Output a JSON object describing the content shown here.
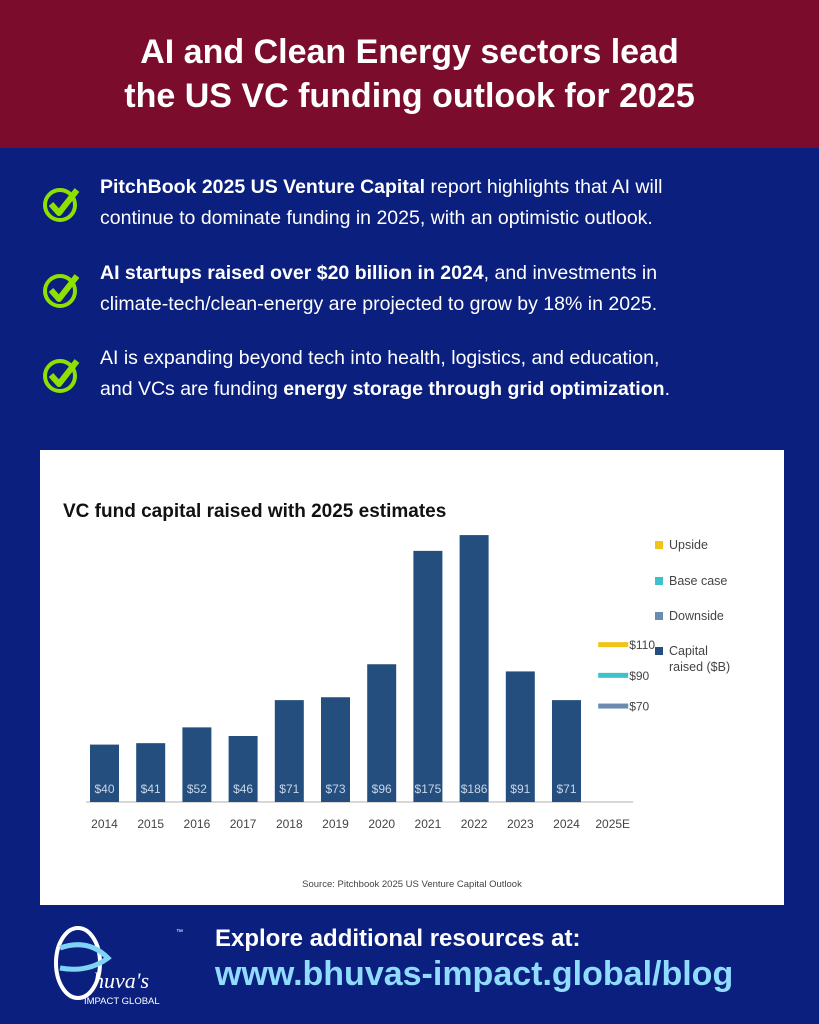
{
  "header": {
    "title_line1": "AI and Clean Energy sectors lead",
    "title_line2": "the US VC funding outlook for 2025"
  },
  "bullets": [
    {
      "bold": "PitchBook 2025 US Venture Capital",
      "rest1": " report highlights that AI will",
      "line2": "continue to dominate funding in 2025, with an optimistic outlook."
    },
    {
      "bold": "AI startups raised over $20 billion in 2024",
      "rest1": ", and investments in",
      "line2": "climate-tech/clean-energy are projected to grow by 18% in 2025."
    },
    {
      "line1": "AI is expanding beyond tech into health, logistics, and education,",
      "pre2": "and VCs are funding ",
      "bold2": "energy storage through grid optimization",
      "post2": "."
    }
  ],
  "colors": {
    "header": "#7b0c2c",
    "background": "#0b1f7e",
    "check": "#8ee000",
    "bar": "#234e7e",
    "upside": "#f0c419",
    "base": "#3fc1c9",
    "downside": "#6b8bb0",
    "url": "#8fdcff"
  },
  "chart_data": {
    "type": "bar",
    "title": "VC fund capital raised with 2025 estimates",
    "categories": [
      "2014",
      "2015",
      "2016",
      "2017",
      "2018",
      "2019",
      "2020",
      "2021",
      "2022",
      "2023",
      "2024",
      "2025E"
    ],
    "series": [
      {
        "name": "Capital raised ($B)",
        "values": [
          40,
          41,
          52,
          46,
          71,
          73,
          96,
          175,
          186,
          91,
          71,
          null
        ],
        "labels": [
          "$40",
          "$41",
          "$52",
          "$46",
          "$71",
          "$73",
          "$96",
          "$175",
          "$186",
          "$91",
          "$71",
          ""
        ]
      }
    ],
    "estimates_2025": [
      {
        "name": "Upside",
        "value": 110,
        "label": "$110"
      },
      {
        "name": "Base case",
        "value": 90,
        "label": "$90"
      },
      {
        "name": "Downside",
        "value": 70,
        "label": "$70"
      }
    ],
    "legend": [
      "Upside",
      "Base case",
      "Downside",
      "Capital",
      "raised ($B)"
    ],
    "legend_position": "right",
    "grid": false,
    "ylim": [
      0,
      190
    ],
    "source": "Source: Pitchbook 2025 US Venture Capital Outlook"
  },
  "footer": {
    "explore": "Explore additional resources at:",
    "url": "www.bhuvas-impact.global/blog",
    "logo_text": "Bhuva's IMPACT GLOBAL ™"
  }
}
